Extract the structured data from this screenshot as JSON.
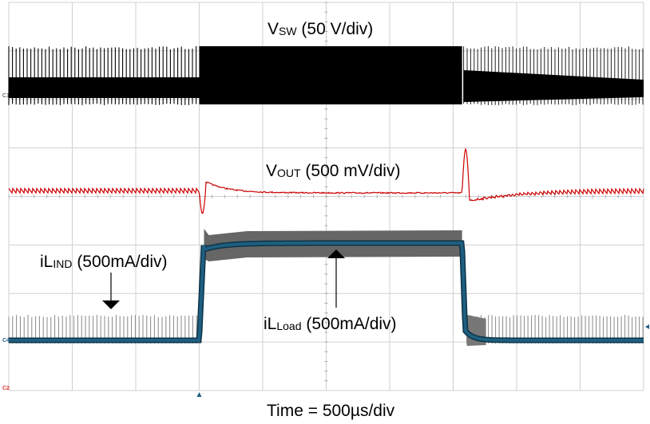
{
  "chart_data": {
    "type": "line",
    "title": "",
    "xlabel": "Time = 500µs/div",
    "time_per_div_us": 500,
    "divisions": {
      "horizontal": 10,
      "vertical": 8
    },
    "xlim_ms": [
      0,
      5
    ],
    "grid": true,
    "load_step_on_ms": 1.5,
    "load_step_off_ms": 3.57,
    "series": [
      {
        "name": "VSW",
        "label_main": "V",
        "label_sub": "SW",
        "label_scale": " (50 V/div)",
        "channel": "C1",
        "color": "#000000",
        "segments": [
          {
            "t_ms": [
              0,
              1.5
            ],
            "mode": "pulse-skipping, sparse switching"
          },
          {
            "t_ms": [
              1.5,
              3.57
            ],
            "mode": "continuous switching (dense)"
          },
          {
            "t_ms": [
              3.57,
              5
            ],
            "mode": "pulse-skipping, sparse switching"
          }
        ]
      },
      {
        "name": "VOUT",
        "label_main": "V",
        "label_sub": "OUT",
        "label_scale": " (500 mV/div)",
        "channel": "C2",
        "color": "#cc0000",
        "points_div": [
          [
            0,
            0
          ],
          [
            1.5,
            0
          ],
          [
            1.52,
            -0.45
          ],
          [
            1.58,
            0.22
          ],
          [
            2.2,
            0.0
          ],
          [
            3.57,
            0.0
          ],
          [
            3.58,
            0.9
          ],
          [
            3.63,
            -0.2
          ],
          [
            4.2,
            -0.05
          ],
          [
            5,
            0
          ]
        ]
      },
      {
        "name": "iL_IND",
        "label_main": "iL",
        "label_sub": "IND",
        "label_scale": " (500mA/div)",
        "channel": "C4",
        "color": "#7a7a7a",
        "note": "switching inductor current envelope"
      },
      {
        "name": "iL_Load",
        "label_main": "iL",
        "label_sub": "Load",
        "label_scale": " (500mA/div)",
        "channel": "C4",
        "color": "#1f5f80",
        "points_A": [
          [
            0,
            0
          ],
          [
            1.5,
            0
          ],
          [
            1.54,
            0.9
          ],
          [
            2.0,
            1.0
          ],
          [
            3.57,
            1.0
          ],
          [
            3.62,
            0.1
          ],
          [
            3.8,
            0
          ],
          [
            5,
            0
          ]
        ]
      }
    ]
  },
  "markers": {
    "c1": "C1",
    "c2": "C2",
    "c4": "C4"
  },
  "colors": {
    "grid": "#d0d0d0",
    "vsw": "#000000",
    "vout": "#cc0000",
    "il_env": "#666666",
    "il_load": "#1f5f80"
  }
}
